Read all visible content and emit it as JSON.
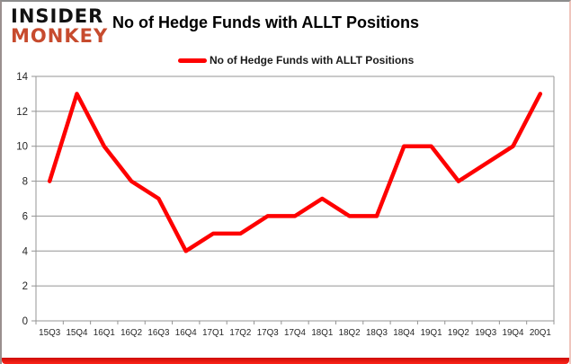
{
  "logo": {
    "line1": "INSIDER",
    "line2": "MONKEY"
  },
  "title": "No of Hedge Funds with ALLT Positions",
  "legend": {
    "label": "No of Hedge Funds with ALLT Positions"
  },
  "chart_data": {
    "type": "line",
    "title": "No of Hedge Funds with ALLT Positions",
    "categories": [
      "15Q3",
      "15Q4",
      "16Q1",
      "16Q2",
      "16Q3",
      "16Q4",
      "17Q1",
      "17Q2",
      "17Q3",
      "17Q4",
      "18Q1",
      "18Q2",
      "18Q3",
      "18Q4",
      "19Q1",
      "19Q2",
      "19Q3",
      "19Q4",
      "20Q1"
    ],
    "series": [
      {
        "name": "No of Hedge Funds with ALLT Positions",
        "values": [
          8,
          13,
          10,
          8,
          7,
          4,
          5,
          5,
          6,
          6,
          7,
          6,
          6,
          10,
          10,
          8,
          9,
          10,
          13
        ]
      }
    ],
    "xlabel": "",
    "ylabel": "",
    "ylim": [
      0,
      14
    ],
    "ytick_step": 2,
    "grid": true,
    "legend_position": "top-center"
  },
  "colors": {
    "series_line": "#fe0000",
    "logo_accent": "#c74b2e",
    "gridline": "#949494",
    "axis_text": "#262626",
    "frame_border": "#8d8d8d",
    "bottom_bar": "#e81309"
  }
}
